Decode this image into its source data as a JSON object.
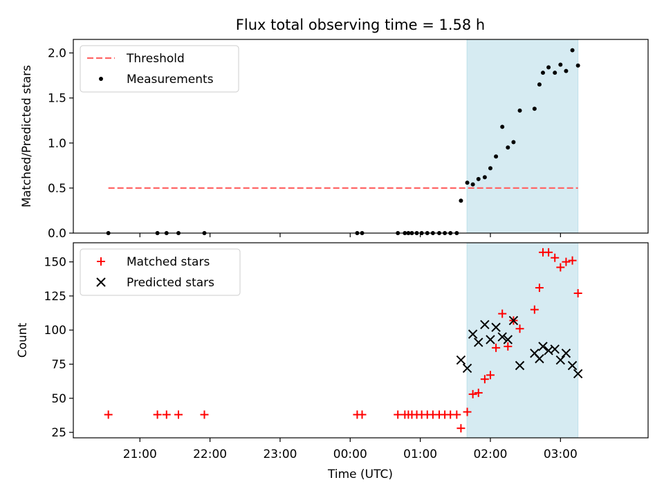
{
  "chart_data": {
    "type": "scatter",
    "title": "Flux total observing time = 1.58 h",
    "xlabel": "Time (UTC)",
    "x_ticks": [
      "21:00",
      "22:00",
      "23:00",
      "00:00",
      "01:00",
      "02:00",
      "03:00"
    ],
    "x_ticks_hours": [
      21,
      22,
      23,
      24,
      25,
      26,
      27
    ],
    "xlim_hours": [
      20.05,
      28.25
    ],
    "shaded_span_hours": [
      25.666,
      27.25
    ],
    "shade_color": "#add8e6",
    "panels": [
      {
        "id": "ratio",
        "ylabel": "Matched/Predicted stars",
        "ylim": [
          0,
          2.15
        ],
        "y_ticks": [
          "0.0",
          "0.5",
          "1.0",
          "1.5",
          "2.0"
        ],
        "y_ticks_values": [
          0,
          0.5,
          1.0,
          1.5,
          2.0
        ],
        "legend": {
          "position": "upper left",
          "entries": [
            "Threshold",
            "Measurements"
          ]
        },
        "series": [
          {
            "name": "Threshold",
            "kind": "dashed-line",
            "color": "#ff6666",
            "x_hours": [
              20.55,
              27.25
            ],
            "y": [
              0.5,
              0.5
            ]
          },
          {
            "name": "Measurements",
            "kind": "dot",
            "color": "#000000",
            "x_hours": [
              20.55,
              21.25,
              21.38,
              21.55,
              21.92,
              24.1,
              24.17,
              24.68,
              24.78,
              24.83,
              24.88,
              24.95,
              25.02,
              25.1,
              25.18,
              25.27,
              25.35,
              25.43,
              25.52,
              25.58,
              25.67,
              25.75,
              25.83,
              25.92,
              26.0,
              26.08,
              26.17,
              26.25,
              26.33,
              26.42,
              26.63,
              26.7,
              26.75,
              26.83,
              26.92,
              27.0,
              27.08,
              27.17,
              27.25
            ],
            "y": [
              0,
              0,
              0,
              0,
              0,
              0,
              0,
              0,
              0,
              0,
              0,
              0,
              0,
              0,
              0,
              0,
              0,
              0,
              0,
              0.36,
              0.56,
              0.54,
              0.6,
              0.62,
              0.72,
              0.85,
              1.18,
              0.95,
              1.01,
              1.36,
              1.38,
              1.65,
              1.78,
              1.84,
              1.78,
              1.87,
              1.8,
              2.03,
              1.86
            ]
          }
        ]
      },
      {
        "id": "count",
        "ylabel": "Count",
        "ylim": [
          21,
          164
        ],
        "y_ticks": [
          "25",
          "50",
          "75",
          "100",
          "125",
          "150"
        ],
        "y_ticks_values": [
          25,
          50,
          75,
          100,
          125,
          150
        ],
        "legend": {
          "position": "upper left",
          "entries": [
            "Matched stars",
            "Predicted stars"
          ]
        },
        "series": [
          {
            "name": "Matched stars",
            "kind": "plus",
            "color": "#ff0000",
            "x_hours": [
              20.55,
              21.25,
              21.38,
              21.55,
              21.92,
              24.1,
              24.17,
              24.68,
              24.78,
              24.83,
              24.88,
              24.95,
              25.02,
              25.1,
              25.18,
              25.27,
              25.35,
              25.43,
              25.52,
              25.58,
              25.67,
              25.75,
              25.83,
              25.92,
              26.0,
              26.08,
              26.17,
              26.25,
              26.33,
              26.42,
              26.63,
              26.7,
              26.75,
              26.83,
              26.92,
              27.0,
              27.08,
              27.17,
              27.25
            ],
            "y": [
              38,
              38,
              38,
              38,
              38,
              38,
              38,
              38,
              38,
              38,
              38,
              38,
              38,
              38,
              38,
              38,
              38,
              38,
              38,
              28,
              40,
              53,
              54,
              64,
              67,
              87,
              112,
              88,
              107,
              101,
              115,
              131,
              157,
              157,
              153,
              146,
              150,
              151,
              127
            ]
          },
          {
            "name": "Predicted stars",
            "kind": "x",
            "color": "#000000",
            "x_hours": [
              25.58,
              25.67,
              25.75,
              25.83,
              25.92,
              26.0,
              26.08,
              26.17,
              26.25,
              26.33,
              26.42,
              26.63,
              26.7,
              26.75,
              26.83,
              26.92,
              27.0,
              27.08,
              27.17,
              27.25
            ],
            "y": [
              78,
              72,
              97,
              91,
              104,
              93,
              102,
              95,
              93,
              107,
              74,
              83,
              79,
              88,
              85,
              86,
              78,
              83,
              74,
              68
            ]
          }
        ]
      }
    ]
  }
}
